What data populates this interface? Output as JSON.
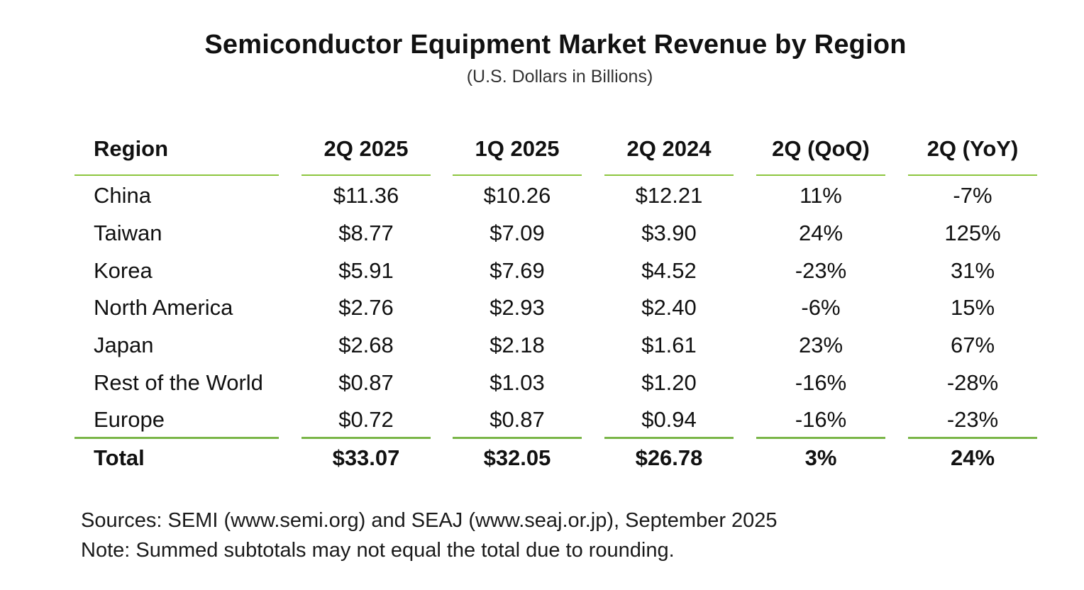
{
  "title": "Semiconductor Equipment Market Revenue by Region",
  "subtitle": "(U.S. Dollars in Billions)",
  "colors": {
    "rule": "#8cc63f"
  },
  "table": {
    "headers": [
      "Region",
      "2Q 2025",
      "1Q 2025",
      "2Q 2024",
      "2Q (QoQ)",
      "2Q (YoY)"
    ],
    "rows": [
      [
        "China",
        "$11.36",
        "$10.26",
        "$12.21",
        "11%",
        "-7%"
      ],
      [
        "Taiwan",
        "$8.77",
        "$7.09",
        "$3.90",
        "24%",
        "125%"
      ],
      [
        "Korea",
        "$5.91",
        "$7.69",
        "$4.52",
        "-23%",
        "31%"
      ],
      [
        "North America",
        "$2.76",
        "$2.93",
        "$2.40",
        "-6%",
        "15%"
      ],
      [
        "Japan",
        "$2.68",
        "$2.18",
        "$1.61",
        "23%",
        "67%"
      ],
      [
        "Rest of the World",
        "$0.87",
        "$1.03",
        "$1.20",
        "-16%",
        "-28%"
      ],
      [
        "Europe",
        "$0.72",
        "$0.87",
        "$0.94",
        "-16%",
        "-23%"
      ]
    ],
    "total": [
      "Total",
      "$33.07",
      "$32.05",
      "$26.78",
      "3%",
      "24%"
    ]
  },
  "sources": "Sources: SEMI (www.semi.org) and SEAJ (www.seaj.or.jp), September 2025",
  "note": "Note: Summed subtotals may not equal the total due to rounding."
}
